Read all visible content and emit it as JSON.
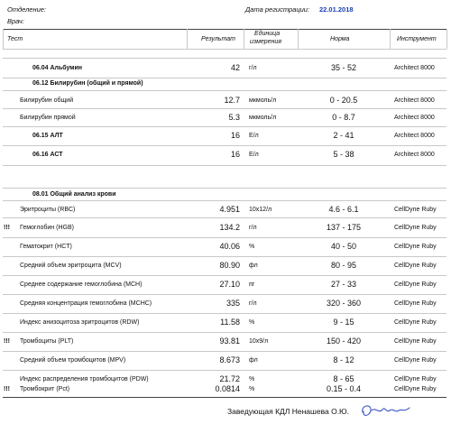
{
  "header": {
    "department_label": "Отделение:",
    "doctor_label": "Врач:",
    "reg_date_label": "Дата регистрации:",
    "reg_date": "22.01.2018"
  },
  "columns": {
    "test": "Тест",
    "result": "Результат",
    "unit_line1": "Единица",
    "unit_line2": "измерения",
    "norm": "Норма",
    "instrument": "Инструмент"
  },
  "rows": [
    {
      "flag": "",
      "name": "06.04 Альбумин",
      "result": "42",
      "unit": "г/л",
      "norm": "35 - 52",
      "instrument": "Architect 8000"
    },
    {
      "flag": "",
      "name": "06.12 Билирубин (общий и прямой)",
      "result": "",
      "unit": "",
      "norm": "",
      "instrument": ""
    },
    {
      "flag": "",
      "name": "Билирубин общий",
      "result": "12.7",
      "unit": "мкмоль/л",
      "norm": "0 - 20.5",
      "instrument": "Architect 8000"
    },
    {
      "flag": "",
      "name": "Билирубин прямой",
      "result": "5.3",
      "unit": "мкмоль/л",
      "norm": "0 - 8.7",
      "instrument": "Architect 8000"
    },
    {
      "flag": "",
      "name": "06.15 АЛТ",
      "result": "16",
      "unit": "Е/л",
      "norm": "2 - 41",
      "instrument": "Architect 8000"
    },
    {
      "flag": "",
      "name": "06.16 АСТ",
      "result": "16",
      "unit": "Е/л",
      "norm": "5 - 38",
      "instrument": "Architect 8000"
    },
    {
      "flag": "",
      "name": "08.01 Общий анализ крови",
      "result": "",
      "unit": "",
      "norm": "",
      "instrument": ""
    },
    {
      "flag": "",
      "name": "Эритроциты (RBC)",
      "result": "4.951",
      "unit": "10x12/л",
      "norm": "4.6 - 6.1",
      "instrument": "CellDyne Ruby"
    },
    {
      "flag": "!!!",
      "name": "Гемоглобин (HGB)",
      "result": "134.2",
      "unit": "г/л",
      "norm": "137 - 175",
      "instrument": "CellDyne Ruby"
    },
    {
      "flag": "",
      "name": "Гематокрит (HCT)",
      "result": "40.06",
      "unit": "%",
      "norm": "40 - 50",
      "instrument": "CellDyne Ruby"
    },
    {
      "flag": "",
      "name": "Средний объем эритроцита (MCV)",
      "result": "80.90",
      "unit": "фл",
      "norm": "80 - 95",
      "instrument": "CellDyne Ruby"
    },
    {
      "flag": "",
      "name": "Среднее содержание гемоглобина (MCH)",
      "result": "27.10",
      "unit": "пг",
      "norm": "27 - 33",
      "instrument": "CellDyne Ruby"
    },
    {
      "flag": "",
      "name": "Средняя концентрация гемоглобина (MCHC)",
      "result": "335",
      "unit": "г/л",
      "norm": "320 - 360",
      "instrument": "CellDyne Ruby"
    },
    {
      "flag": "",
      "name": "Индекс анизоцитоза эритроцитов (RDW)",
      "result": "11.58",
      "unit": "%",
      "norm": "9 - 15",
      "instrument": "CellDyne Ruby"
    },
    {
      "flag": "!!!",
      "name": "Тромбоциты (PLT)",
      "result": "93.81",
      "unit": "10x9/л",
      "norm": "150 - 420",
      "instrument": "CellDyne Ruby"
    },
    {
      "flag": "",
      "name": "Средний объем тромбоцитов (MPV)",
      "result": "8.673",
      "unit": "фл",
      "norm": "8 - 12",
      "instrument": "CellDyne Ruby"
    },
    {
      "flag": "",
      "name": "Индекс распределения тромбоцитов (PDW)",
      "result": "21.72",
      "unit": "%",
      "norm": "8 - 65",
      "instrument": "CellDyne Ruby"
    },
    {
      "flag": "!!!",
      "name": "Тромбокрит (Pct)",
      "result": "0.0814",
      "unit": "%",
      "norm": "0.15 - 0.4",
      "instrument": "CellDyne Ruby"
    }
  ],
  "footer": {
    "signature_text": "Заведующая КДЛ  Ненашева О.Ю."
  }
}
